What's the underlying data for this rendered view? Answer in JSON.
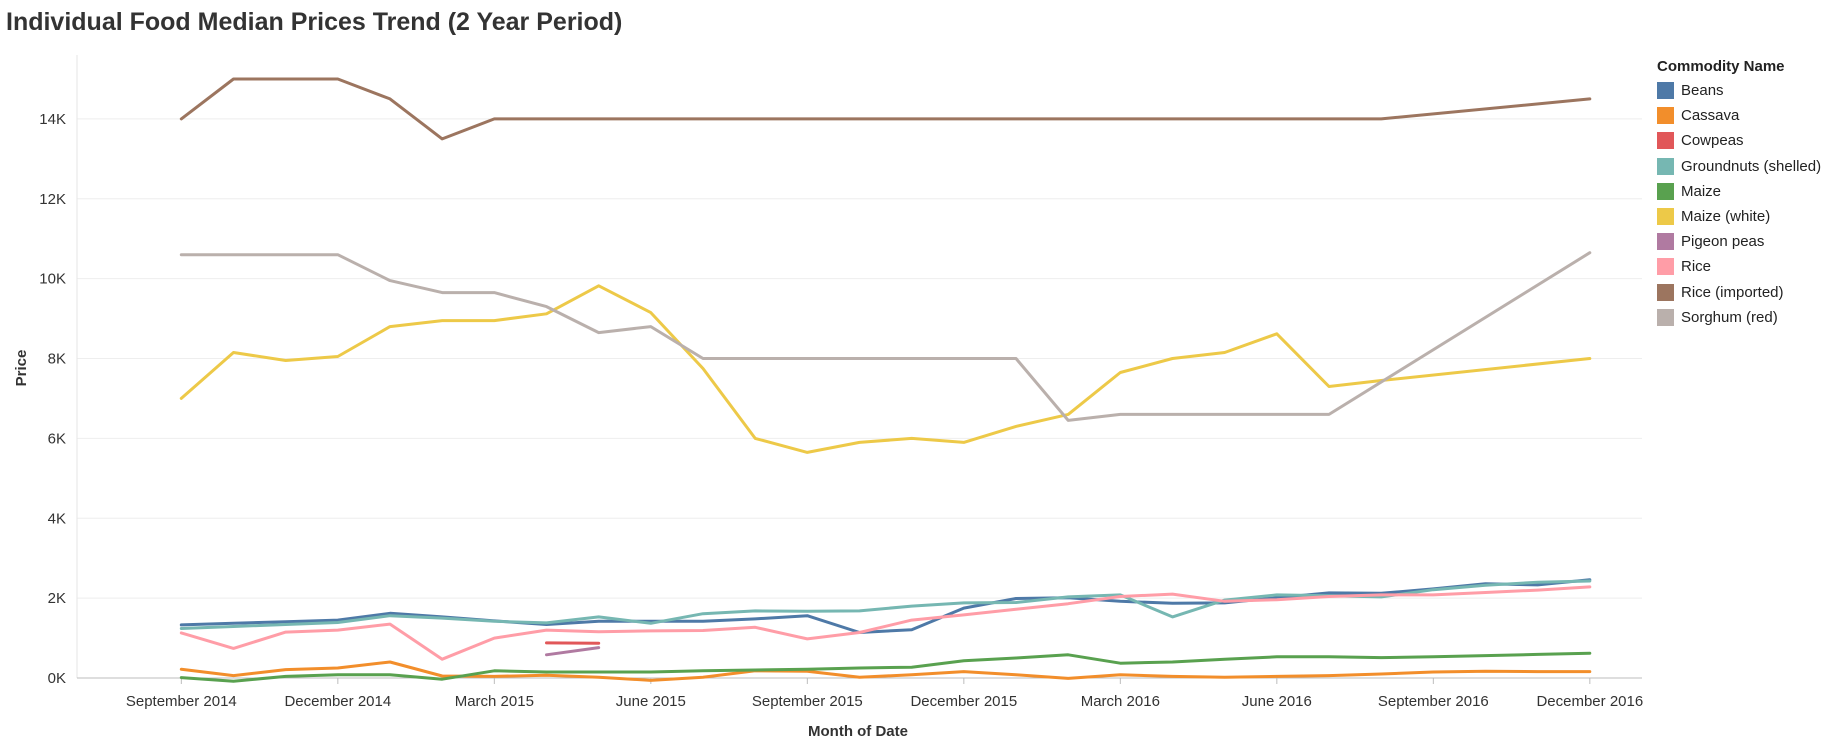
{
  "title": "Individual Food Median Prices Trend (2 Year Period)",
  "chart_data": {
    "type": "line",
    "xlabel": "Month of Date",
    "ylabel": "Price",
    "ylim": [
      0,
      15600
    ],
    "yticks": [
      0,
      2000,
      4000,
      6000,
      8000,
      10000,
      12000,
      14000
    ],
    "ytick_labels": [
      "0K",
      "2K",
      "4K",
      "6K",
      "8K",
      "10K",
      "12K",
      "14K"
    ],
    "xlim": [
      "2014-07",
      "2017-01"
    ],
    "xticks": [
      "2014-09",
      "2014-12",
      "2015-03",
      "2015-06",
      "2015-09",
      "2015-12",
      "2016-03",
      "2016-06",
      "2016-09",
      "2016-12"
    ],
    "xtick_labels": [
      "September 2014",
      "December 2014",
      "March 2015",
      "June 2015",
      "September 2015",
      "December 2015",
      "March 2016",
      "June 2016",
      "September 2016",
      "December 2016"
    ],
    "grid": true,
    "legend_title": "Commodity Name",
    "legend_position": "right",
    "months": [
      "2014-09",
      "2014-10",
      "2014-11",
      "2014-12",
      "2015-01",
      "2015-02",
      "2015-03",
      "2015-04",
      "2015-05",
      "2015-06",
      "2015-07",
      "2015-08",
      "2015-09",
      "2015-10",
      "2015-11",
      "2015-12",
      "2016-01",
      "2016-02",
      "2016-03",
      "2016-04",
      "2016-05",
      "2016-06",
      "2016-07",
      "2016-08",
      "2016-09",
      "2016-10",
      "2016-11",
      "2016-12"
    ],
    "series": [
      {
        "name": "Beans",
        "color": "#4e79a7",
        "values": [
          1330,
          1370,
          1410,
          1450,
          1620,
          1530,
          1430,
          1340,
          1420,
          1420,
          1420,
          1480,
          1560,
          1140,
          1210,
          1750,
          1990,
          2010,
          1920,
          1870,
          1880,
          2010,
          2130,
          2120,
          2230,
          2360,
          2330,
          2460
        ]
      },
      {
        "name": "Cassava",
        "color": "#f28e2b",
        "values": [
          220,
          60,
          210,
          250,
          400,
          50,
          40,
          70,
          20,
          -60,
          20,
          180,
          170,
          20,
          80,
          160,
          80,
          -10,
          80,
          40,
          20,
          40,
          60,
          100,
          150,
          170,
          160,
          160
        ]
      },
      {
        "name": "Cowpeas",
        "color": "#e15759",
        "values": [
          null,
          null,
          null,
          null,
          null,
          null,
          null,
          880,
          870,
          null,
          null,
          null,
          null,
          null,
          null,
          null,
          null,
          null,
          null,
          null,
          null,
          null,
          null,
          null,
          null,
          null,
          null,
          null
        ]
      },
      {
        "name": "Groundnuts (shelled)",
        "color": "#76b7b2",
        "values": [
          1240,
          1290,
          1340,
          1390,
          1560,
          1500,
          1420,
          1380,
          1530,
          1370,
          1610,
          1680,
          1670,
          1680,
          1800,
          1880,
          1890,
          2030,
          2080,
          1530,
          1950,
          2080,
          2060,
          2030,
          2210,
          2320,
          2400,
          2430
        ]
      },
      {
        "name": "Maize",
        "color": "#59a14f",
        "values": [
          10,
          -80,
          40,
          80,
          80,
          -30,
          180,
          150,
          150,
          150,
          180,
          200,
          220,
          250,
          270,
          430,
          500,
          580,
          370,
          400,
          470,
          530,
          530,
          510,
          530,
          560,
          590,
          620
        ]
      },
      {
        "name": "Maize (white)",
        "color": "#edc948",
        "values": [
          7000,
          8150,
          7950,
          8050,
          8800,
          8950,
          8950,
          9120,
          9820,
          9150,
          7750,
          6000,
          5650,
          5900,
          6000,
          5900,
          6300,
          6600,
          7650,
          8000,
          8150,
          8620,
          7300,
          7450,
          null,
          null,
          null,
          8000
        ]
      },
      {
        "name": "Pigeon peas",
        "color": "#b07aa1",
        "values": [
          null,
          null,
          null,
          null,
          null,
          null,
          null,
          580,
          760,
          null,
          null,
          null,
          null,
          null,
          null,
          null,
          null,
          null,
          null,
          null,
          null,
          null,
          null,
          null,
          null,
          null,
          null,
          null
        ]
      },
      {
        "name": "Rice",
        "color": "#ff9da7",
        "values": [
          1130,
          740,
          1150,
          1200,
          1350,
          470,
          1000,
          1200,
          1160,
          1180,
          1190,
          1270,
          980,
          1140,
          1450,
          1580,
          1720,
          1860,
          2040,
          2100,
          1920,
          1960,
          2040,
          2080,
          2080,
          2140,
          2200,
          2280
        ]
      },
      {
        "name": "Rice (imported)",
        "color": "#9c755f",
        "values": [
          14000,
          15000,
          15000,
          15000,
          14500,
          13500,
          14000,
          14000,
          14000,
          14000,
          14000,
          14000,
          14000,
          14000,
          14000,
          14000,
          14000,
          14000,
          14000,
          14000,
          14000,
          14000,
          14000,
          14000,
          null,
          null,
          null,
          14500
        ]
      },
      {
        "name": "Sorghum (red)",
        "color": "#bab0ac",
        "values": [
          10600,
          10600,
          10600,
          10600,
          9950,
          9650,
          9650,
          9300,
          8650,
          8800,
          8000,
          8000,
          8000,
          8000,
          8000,
          8000,
          8000,
          6450,
          6600,
          6600,
          6600,
          6600,
          6600,
          null,
          null,
          null,
          null,
          10650
        ]
      }
    ]
  }
}
